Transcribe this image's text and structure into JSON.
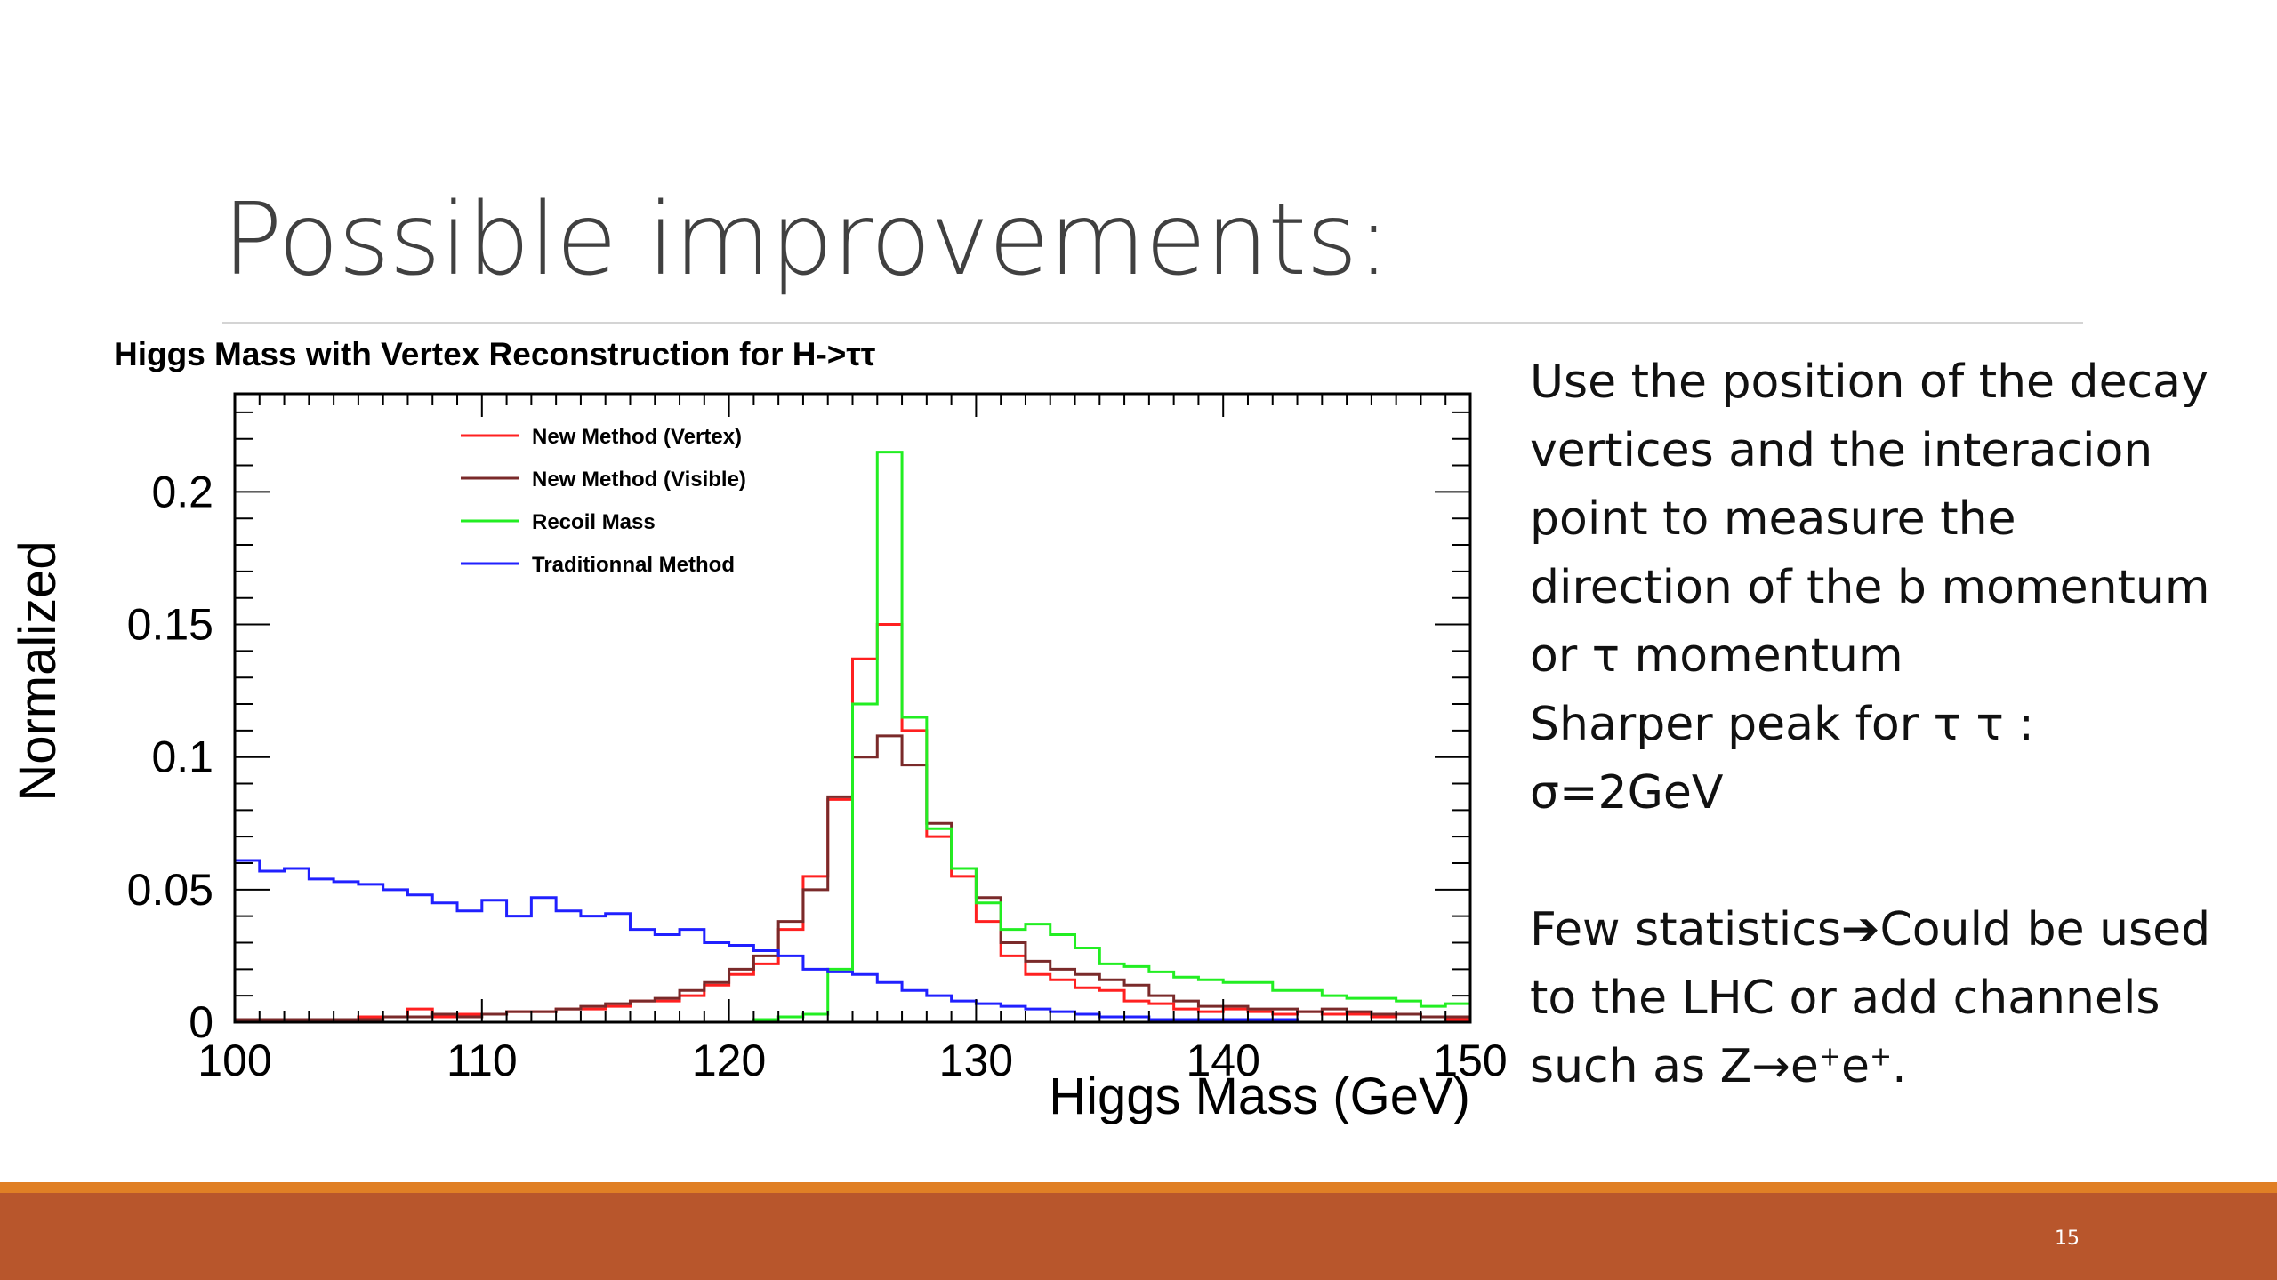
{
  "slide": {
    "title": "Possible improvements:",
    "page_number": "15",
    "colors": {
      "footer_bar": "#b8562c",
      "footer_stripe": "#e07f25",
      "rule": "#d4d4d4"
    }
  },
  "text": {
    "para1": [
      "Use the position of the decay",
      "vertices and the interacion",
      "point to measure the",
      "direction of the  b momentum",
      "or τ momentum",
      "Sharper peak for τ τ :",
      "σ=2GeV"
    ],
    "para2_line1_a": "Few statistics",
    "para2_line1_arrow": "➔",
    "para2_line1_b": "Could be used",
    "para2_line2": "to the LHC or add channels",
    "para2_line3_a": "such as Z",
    "para2_line3_arrow": "→",
    "para2_line3_b": "e",
    "para2_sup1": "+",
    "para2_line3_c": "e",
    "para2_sup2": "+",
    "para2_line3_d": "."
  },
  "chart_data": {
    "type": "line",
    "step": true,
    "title": "Higgs Mass with Vertex Reconstruction for H->ττ",
    "xlabel": "Higgs Mass (GeV)",
    "ylabel": "Normalized",
    "xlim": [
      100,
      150
    ],
    "ylim": [
      0,
      0.237
    ],
    "x_ticks": [
      100,
      110,
      120,
      130,
      140,
      150
    ],
    "y_ticks": [
      0,
      0.05,
      0.1,
      0.15,
      0.2
    ],
    "y_tick_labels": [
      "0",
      "0.05",
      "0.1",
      "0.15",
      "0.2"
    ],
    "legend_position": "top-left",
    "bin_edges": [
      100,
      101,
      102,
      103,
      104,
      105,
      106,
      107,
      108,
      109,
      110,
      111,
      112,
      113,
      114,
      115,
      116,
      117,
      118,
      119,
      120,
      121,
      122,
      123,
      124,
      125,
      126,
      127,
      128,
      129,
      130,
      131,
      132,
      133,
      134,
      135,
      136,
      137,
      138,
      139,
      140,
      141,
      142,
      143,
      144,
      145,
      146,
      147,
      148,
      149,
      150
    ],
    "series": [
      {
        "name": "New Method (Vertex)",
        "color": "#ff2020",
        "values": [
          0.001,
          0.001,
          0.001,
          0.001,
          0.001,
          0.002,
          0.002,
          0.005,
          0.002,
          0.003,
          0.003,
          0.004,
          0.004,
          0.005,
          0.005,
          0.006,
          0.008,
          0.008,
          0.01,
          0.014,
          0.018,
          0.022,
          0.035,
          0.055,
          0.084,
          0.137,
          0.15,
          0.11,
          0.07,
          0.055,
          0.038,
          0.025,
          0.018,
          0.016,
          0.013,
          0.012,
          0.008,
          0.007,
          0.005,
          0.004,
          0.005,
          0.004,
          0.003,
          0.004,
          0.003,
          0.003,
          0.002,
          0.003,
          0.002,
          0.001
        ]
      },
      {
        "name": "New Method (Visible)",
        "color": "#7a2a2a",
        "values": [
          0.001,
          0.001,
          0.001,
          0.001,
          0.001,
          0.001,
          0.002,
          0.002,
          0.003,
          0.002,
          0.003,
          0.004,
          0.004,
          0.005,
          0.006,
          0.007,
          0.008,
          0.009,
          0.012,
          0.015,
          0.02,
          0.025,
          0.038,
          0.05,
          0.085,
          0.1,
          0.108,
          0.097,
          0.075,
          0.058,
          0.047,
          0.03,
          0.023,
          0.02,
          0.018,
          0.016,
          0.014,
          0.01,
          0.008,
          0.006,
          0.006,
          0.005,
          0.005,
          0.004,
          0.005,
          0.004,
          0.003,
          0.003,
          0.002,
          0.002
        ]
      },
      {
        "name": "Recoil Mass",
        "color": "#22ee22",
        "values": [
          0.0,
          0.0,
          0.0,
          0.0,
          0.0,
          0.0,
          0.0,
          0.0,
          0.0,
          0.0,
          0.0,
          0.0,
          0.0,
          0.0,
          0.0,
          0.0,
          0.0,
          0.0,
          0.0,
          0.0,
          0.0,
          0.001,
          0.002,
          0.003,
          0.02,
          0.12,
          0.215,
          0.115,
          0.073,
          0.058,
          0.045,
          0.035,
          0.037,
          0.033,
          0.028,
          0.022,
          0.021,
          0.019,
          0.017,
          0.016,
          0.015,
          0.015,
          0.012,
          0.012,
          0.01,
          0.009,
          0.009,
          0.008,
          0.006,
          0.007
        ]
      },
      {
        "name": "Traditionnal Method",
        "color": "#2020ff",
        "values": [
          0.061,
          0.057,
          0.058,
          0.054,
          0.053,
          0.052,
          0.05,
          0.048,
          0.045,
          0.042,
          0.046,
          0.04,
          0.047,
          0.042,
          0.04,
          0.041,
          0.035,
          0.033,
          0.035,
          0.03,
          0.029,
          0.027,
          0.025,
          0.02,
          0.019,
          0.018,
          0.015,
          0.012,
          0.01,
          0.008,
          0.007,
          0.006,
          0.005,
          0.004,
          0.003,
          0.002,
          0.002,
          0.001,
          0.001,
          0.001,
          0.001,
          0.001,
          0.001,
          0.0,
          0.0,
          0.0,
          0.0,
          0.0,
          0.0,
          0.0
        ]
      }
    ]
  }
}
